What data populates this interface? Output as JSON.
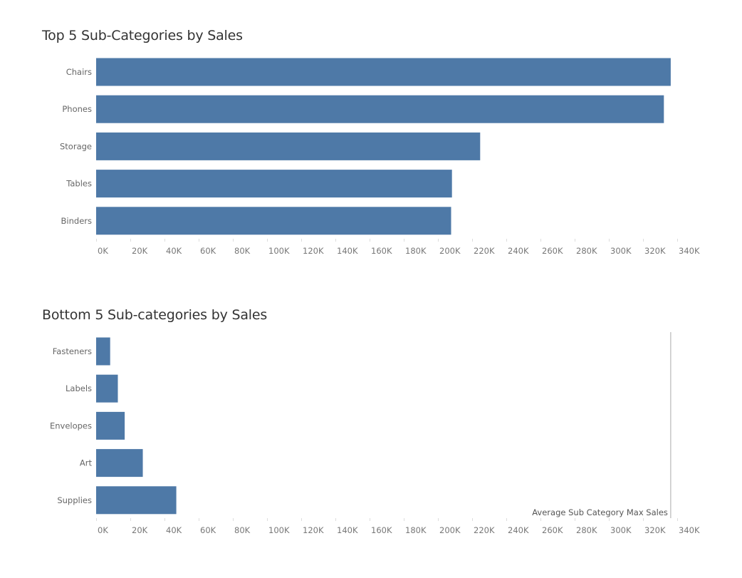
{
  "chart_data": [
    {
      "type": "bar",
      "orientation": "horizontal",
      "title": "Top 5 Sub-Categories by Sales",
      "categories": [
        "Chairs",
        "Phones",
        "Storage",
        "Tables",
        "Binders"
      ],
      "values": [
        336000,
        332000,
        224500,
        208000,
        207500
      ],
      "xlim": [
        0,
        340000
      ],
      "ticks": [
        "0K",
        "20K",
        "40K",
        "60K",
        "80K",
        "100K",
        "120K",
        "140K",
        "160K",
        "180K",
        "200K",
        "220K",
        "240K",
        "260K",
        "280K",
        "300K",
        "320K",
        "340K"
      ],
      "bar_color": "#4e79a7",
      "grid": false
    },
    {
      "type": "bar",
      "orientation": "horizontal",
      "title": "Bottom 5 Sub-categories by Sales",
      "categories": [
        "Fasteners",
        "Labels",
        "Envelopes",
        "Art",
        "Supplies"
      ],
      "values": [
        8000,
        12500,
        16500,
        27100,
        46700
      ],
      "xlim": [
        0,
        340000
      ],
      "ticks": [
        "0K",
        "20K",
        "40K",
        "60K",
        "80K",
        "100K",
        "120K",
        "140K",
        "160K",
        "180K",
        "200K",
        "220K",
        "240K",
        "260K",
        "280K",
        "300K",
        "320K",
        "340K"
      ],
      "bar_color": "#4e79a7",
      "grid": false,
      "reference_line": {
        "label": "Average Sub Category Max Sales",
        "value": 336000
      }
    }
  ]
}
